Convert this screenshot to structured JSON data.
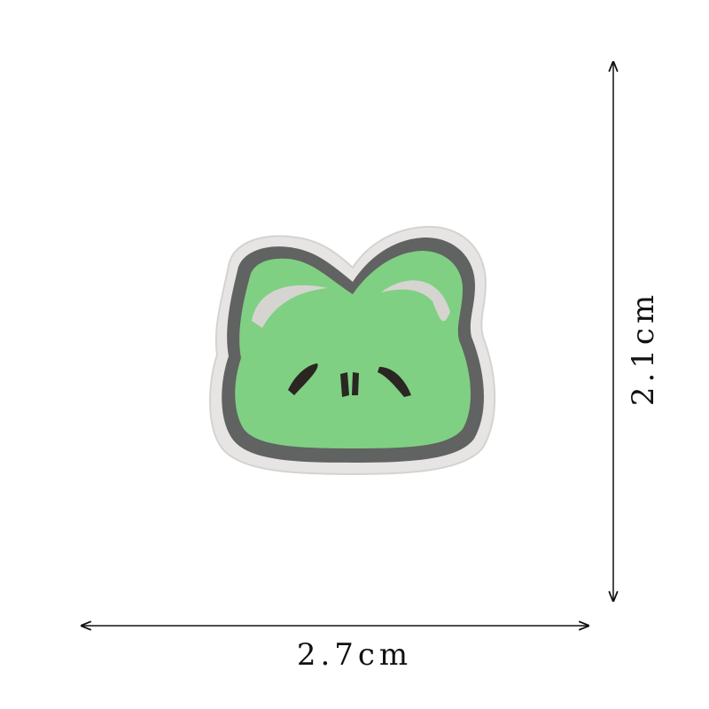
{
  "width_label": "2.7cm",
  "height_label": "2.1cm"
}
